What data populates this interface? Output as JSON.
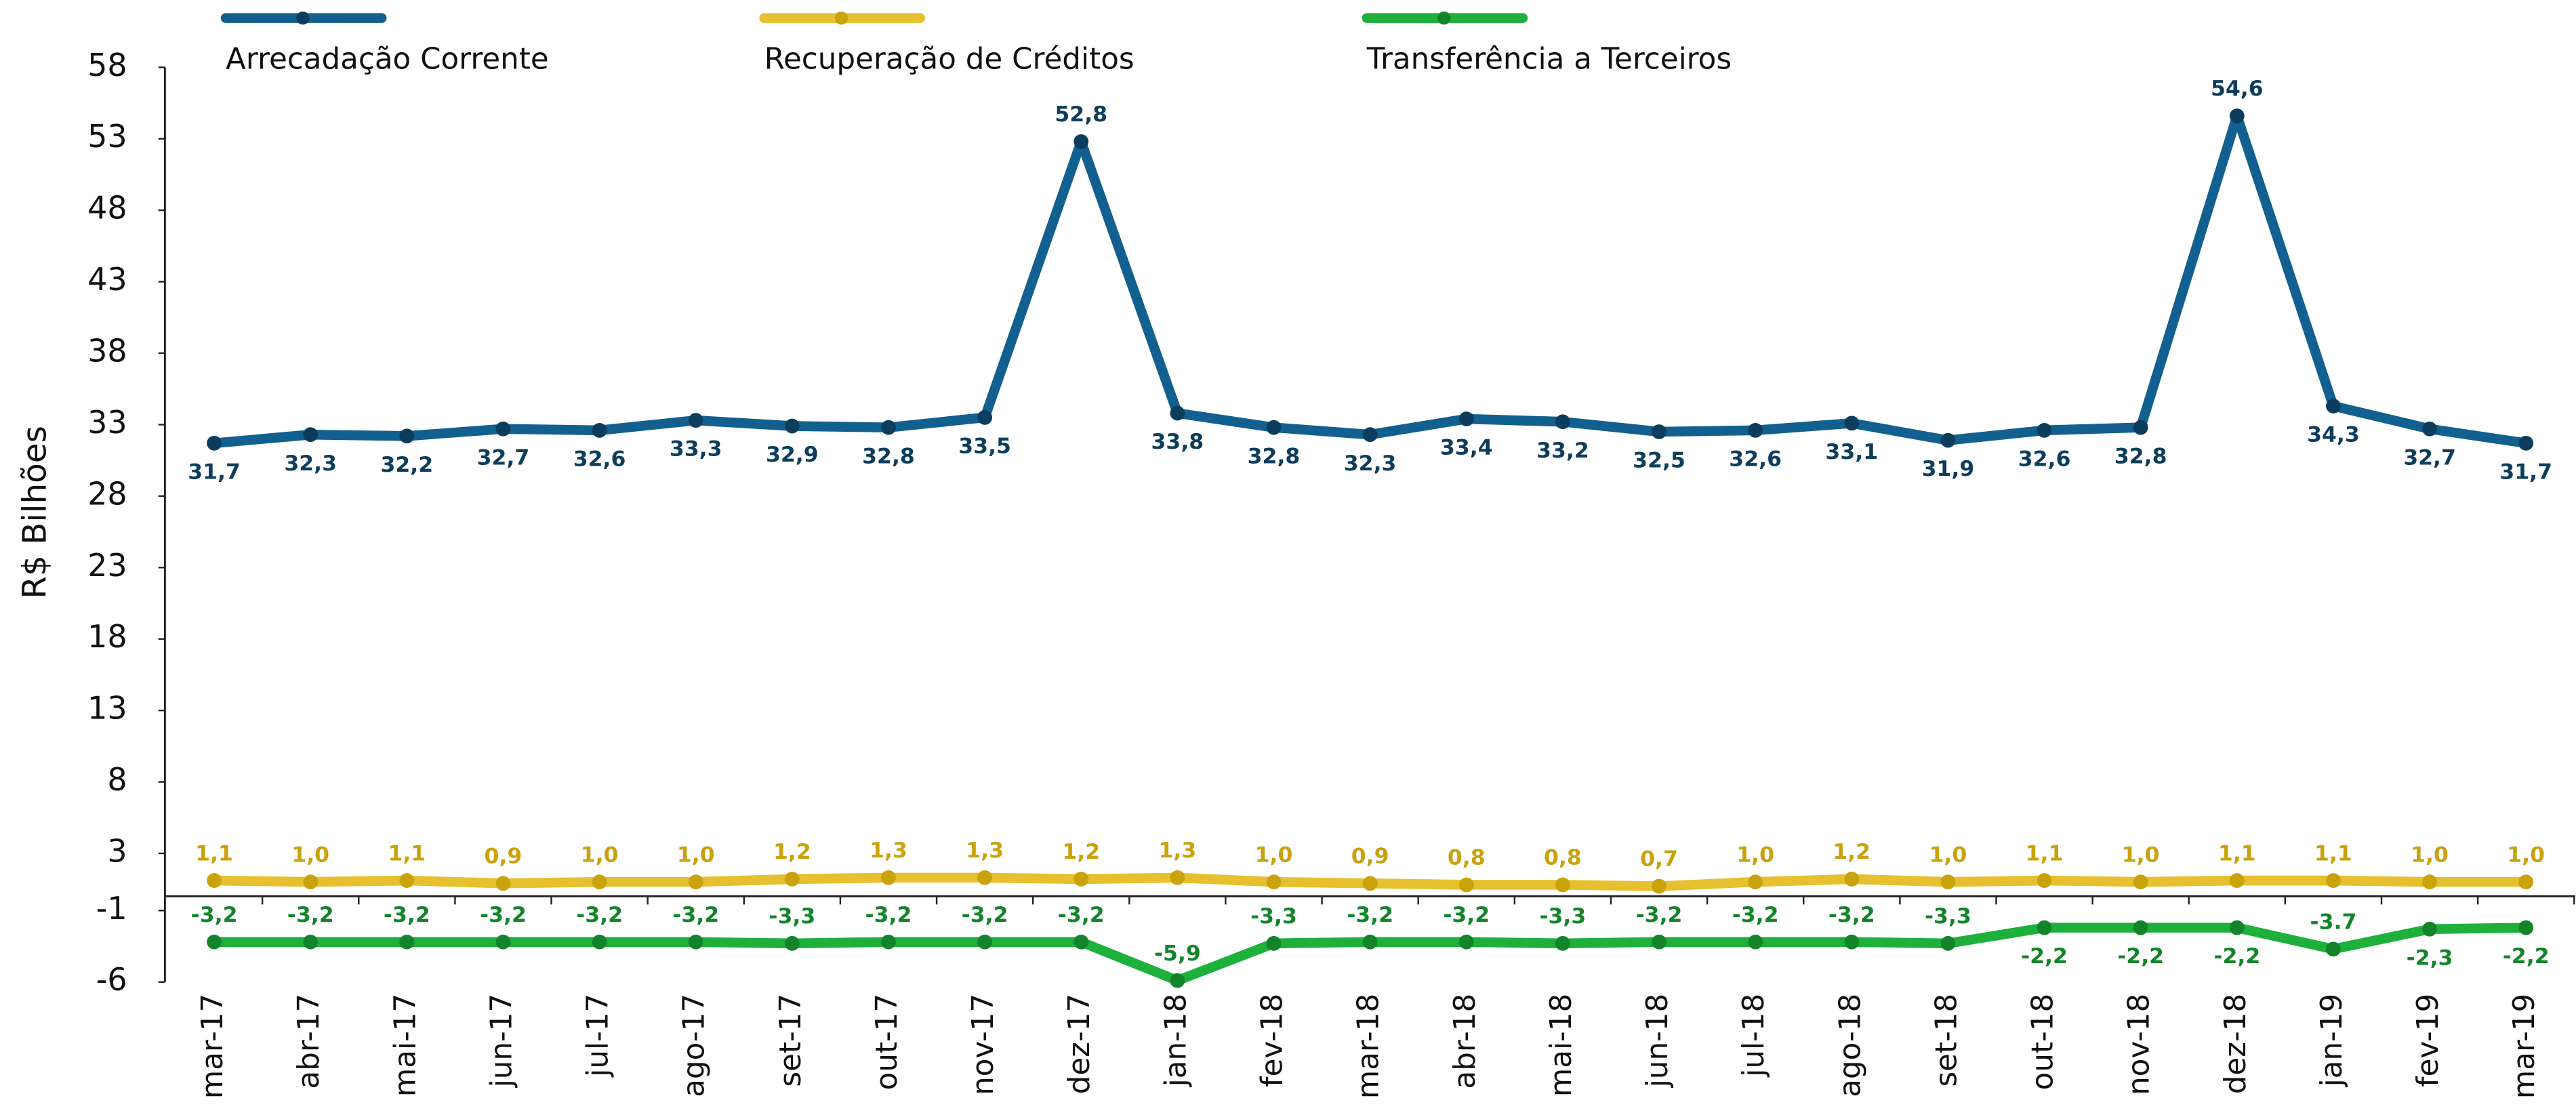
{
  "chart_data": {
    "type": "line",
    "y_label": "R$ Bilhões",
    "categories": [
      "mar-17",
      "abr-17",
      "mai-17",
      "jun-17",
      "jul-17",
      "ago-17",
      "set-17",
      "out-17",
      "nov-17",
      "dez-17",
      "jan-18",
      "fev-18",
      "mar-18",
      "abr-18",
      "mai-18",
      "jun-18",
      "jul-18",
      "ago-18",
      "set-18",
      "out-18",
      "nov-18",
      "dez-18",
      "jan-19",
      "fev-19",
      "mar-19"
    ],
    "series": [
      {
        "name": "Arrecadação Corrente",
        "color": "#12608f",
        "values": [
          31.7,
          32.3,
          32.2,
          32.7,
          32.6,
          33.3,
          32.9,
          32.8,
          33.5,
          52.8,
          33.8,
          32.8,
          32.3,
          33.4,
          33.2,
          32.5,
          32.6,
          33.1,
          31.9,
          32.6,
          32.8,
          54.6,
          34.3,
          32.7,
          31.7
        ],
        "value_labels": [
          "31,7",
          "32,3",
          "32,2",
          "32,7",
          "32,6",
          "33,3",
          "32,9",
          "32,8",
          "33,5",
          "52,8",
          "33,8",
          "32,8",
          "32,3",
          "33,4",
          "33,2",
          "32,5",
          "32,6",
          "33,1",
          "31,9",
          "32,6",
          "32,8",
          "54,6",
          "34,3",
          "32,7",
          "31,7"
        ]
      },
      {
        "name": "Recuperação de Créditos",
        "color": "#e6c02e",
        "values": [
          1.1,
          1.0,
          1.1,
          0.9,
          1.0,
          1.0,
          1.2,
          1.3,
          1.3,
          1.2,
          1.3,
          1.0,
          0.9,
          0.8,
          0.8,
          0.7,
          1.0,
          1.2,
          1.0,
          1.1,
          1.0,
          1.1,
          1.1,
          1.0,
          1.0
        ],
        "value_labels": [
          "1,1",
          "1,0",
          "1,1",
          "0,9",
          "1,0",
          "1,0",
          "1,2",
          "1,3",
          "1,3",
          "1,2",
          "1,3",
          "1,0",
          "0,9",
          "0,8",
          "0,8",
          "0,7",
          "1,0",
          "1,2",
          "1,0",
          "1,1",
          "1,0",
          "1,1",
          "1,1",
          "1,0",
          "1,0"
        ]
      },
      {
        "name": "Transferência a Terceiros",
        "color": "#1db03b",
        "values": [
          -3.2,
          -3.2,
          -3.2,
          -3.2,
          -3.2,
          -3.2,
          -3.3,
          -3.2,
          -3.2,
          -3.2,
          -5.9,
          -3.3,
          -3.2,
          -3.2,
          -3.3,
          -3.2,
          -3.2,
          -3.2,
          -3.3,
          -2.2,
          -2.2,
          -2.2,
          -3.7,
          -2.3,
          -2.2
        ],
        "value_labels": [
          "-3,2",
          "-3,2",
          "-3,2",
          "-3,2",
          "-3,2",
          "-3,2",
          "-3,3",
          "-3,2",
          "-3,2",
          "-3,2",
          "-5,9",
          "-3,3",
          "-3,2",
          "-3,2",
          "-3,3",
          "-3,2",
          "-3,2",
          "-3,2",
          "-3,3",
          "-2,2",
          "-2,2",
          "-2,2",
          "-3.7",
          "-2,3",
          "-2,2"
        ]
      }
    ],
    "ylim": [
      -6,
      58
    ],
    "yticks": [
      58,
      53,
      48,
      43,
      38,
      33,
      28,
      23,
      18,
      13,
      8,
      3,
      -1,
      -6
    ]
  }
}
